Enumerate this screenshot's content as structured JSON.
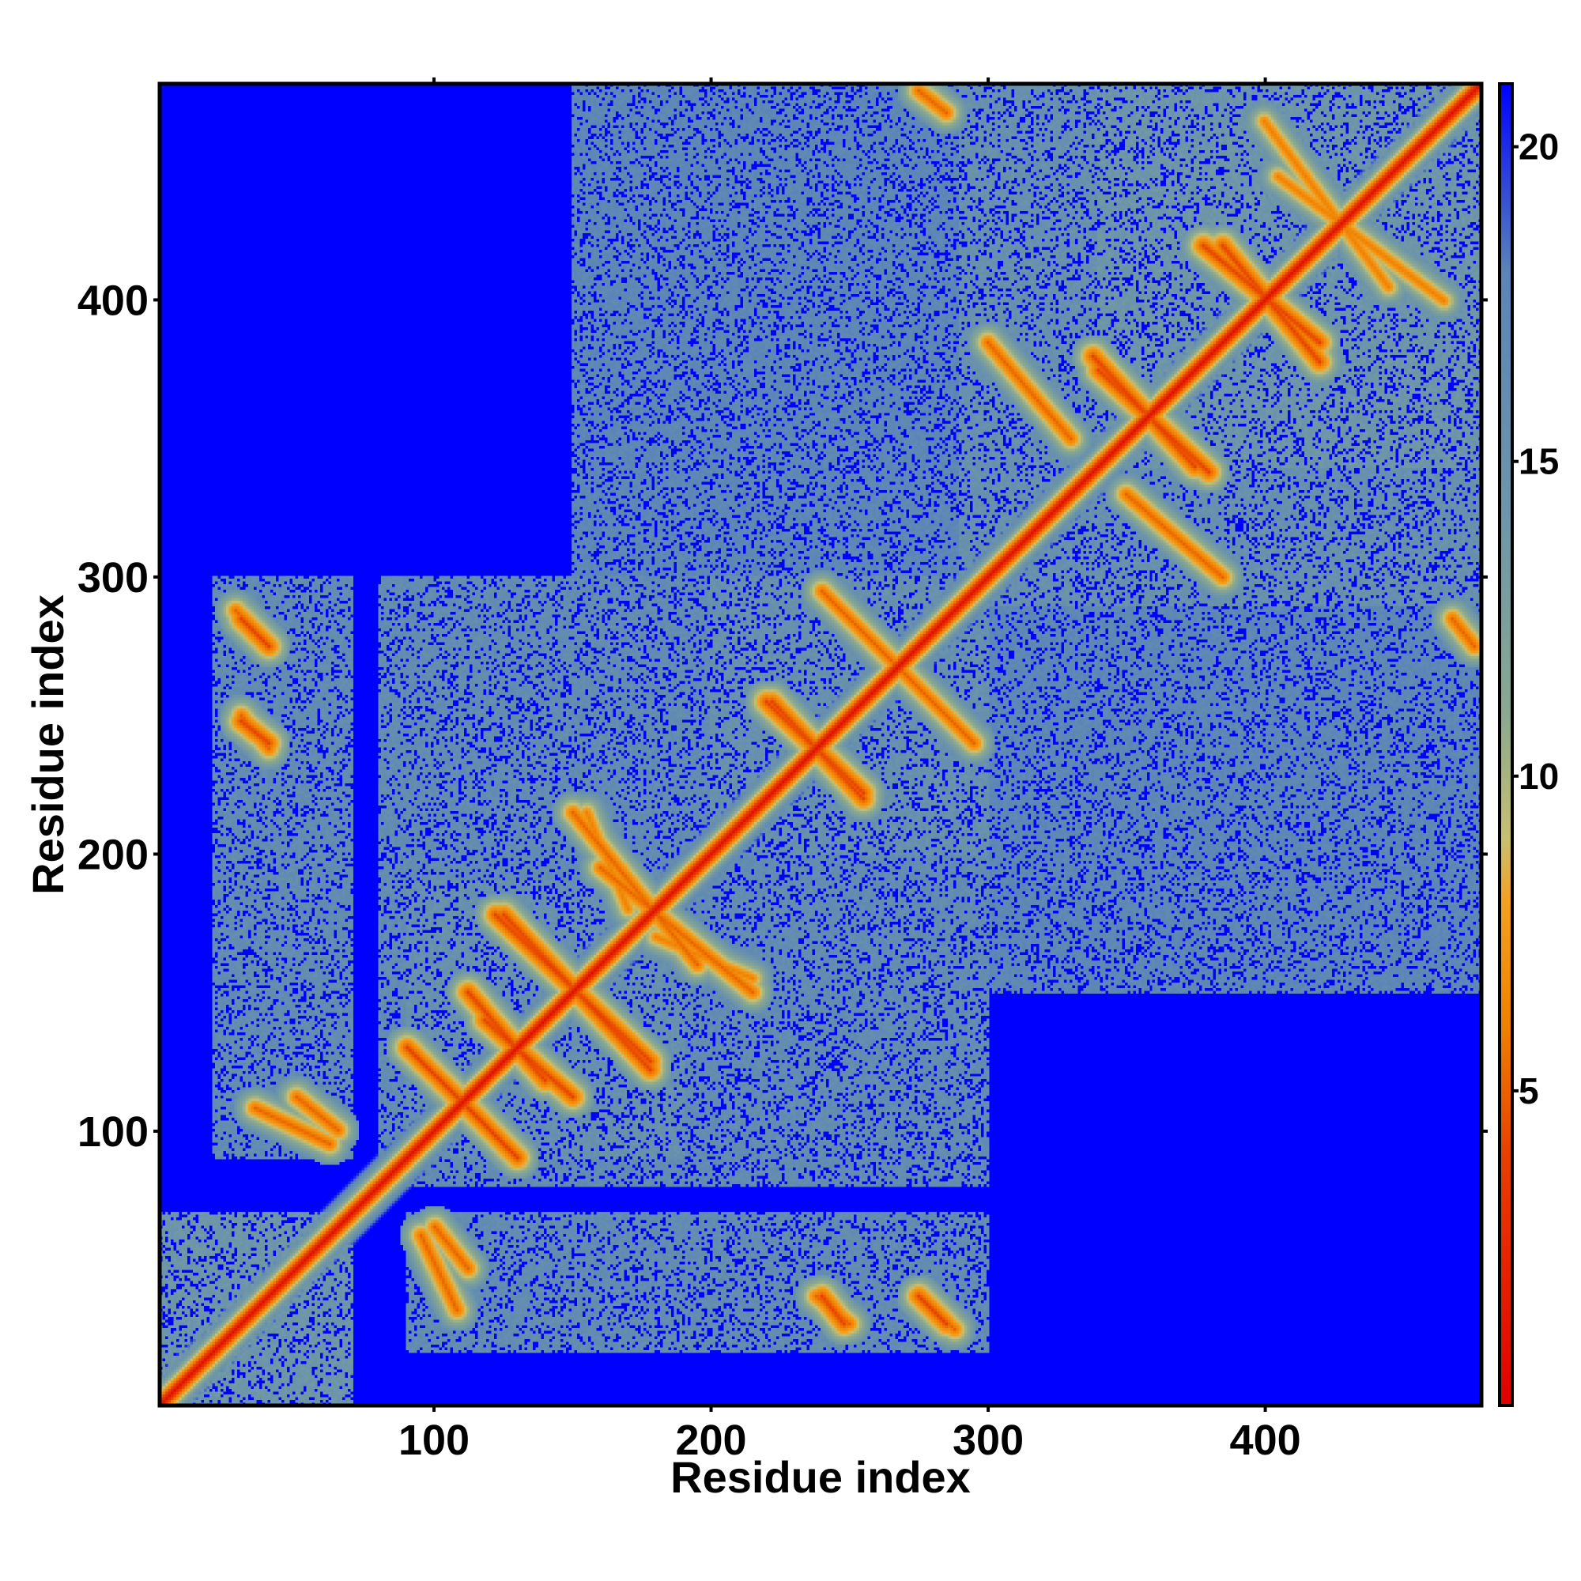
{
  "chart_data": {
    "type": "heatmap",
    "title": "",
    "xlabel": "Residue index",
    "ylabel": "Residue index",
    "xlim": [
      1,
      478
    ],
    "ylim": [
      1,
      478
    ],
    "xticks": [
      100,
      200,
      300,
      400
    ],
    "yticks": [
      100,
      200,
      300,
      400
    ],
    "x_tick_labels": [
      "100",
      "200",
      "300",
      "400"
    ],
    "y_tick_labels": [
      "100",
      "200",
      "300",
      "400"
    ],
    "grid": false,
    "colorbar": {
      "position": "right",
      "range": [
        0,
        21
      ],
      "ticks": [
        5,
        10,
        15,
        20
      ],
      "tick_labels": [
        "5",
        "10",
        "15",
        "20"
      ],
      "color_stops": [
        {
          "value": 0,
          "color": "#e00000"
        },
        {
          "value": 4,
          "color": "#e84000"
        },
        {
          "value": 6,
          "color": "#f08000"
        },
        {
          "value": 8,
          "color": "#f4a020"
        },
        {
          "value": 9,
          "color": "#c8c070"
        },
        {
          "value": 11,
          "color": "#8aa890"
        },
        {
          "value": 14,
          "color": "#6e96a8"
        },
        {
          "value": 18,
          "color": "#5b84b8"
        },
        {
          "value": 21,
          "color": "#0000ff"
        }
      ]
    },
    "symmetric": true,
    "diagonal_value": 1,
    "background_value": 21,
    "contact_blobs": [
      {
        "x_range": [
          1,
          70
        ],
        "y_range": [
          1,
          70
        ],
        "level": 14
      },
      {
        "x_range": [
          90,
          190
        ],
        "y_range": [
          90,
          190
        ],
        "level": 15
      },
      {
        "x_range": [
          80,
          300
        ],
        "y_range": [
          80,
          300
        ],
        "level": 16
      },
      {
        "x_range": [
          200,
          300
        ],
        "y_range": [
          200,
          300
        ],
        "level": 15
      },
      {
        "x_range": [
          290,
          478
        ],
        "y_range": [
          290,
          478
        ],
        "level": 15
      },
      {
        "x_range": [
          340,
          478
        ],
        "y_range": [
          340,
          478
        ],
        "level": 14
      },
      {
        "x_range": [
          20,
          70
        ],
        "y_range": [
          90,
          300
        ],
        "level": 16
      },
      {
        "x_range": [
          90,
          300
        ],
        "y_range": [
          20,
          70
        ],
        "level": 16
      },
      {
        "x_range": [
          150,
          430
        ],
        "y_range": [
          250,
          478
        ],
        "level": 17
      },
      {
        "x_range": [
          250,
          478
        ],
        "y_range": [
          150,
          430
        ],
        "level": 17
      }
    ],
    "contact_lines": [
      {
        "from": [
          92,
          128
        ],
        "to": [
          130,
          90
        ],
        "min": 4
      },
      {
        "from": [
          112,
          150
        ],
        "to": [
          140,
          118
        ],
        "min": 4
      },
      {
        "from": [
          122,
          178
        ],
        "to": [
          178,
          125
        ],
        "min": 4
      },
      {
        "from": [
          150,
          215
        ],
        "to": [
          195,
          160
        ],
        "min": 5
      },
      {
        "from": [
          180,
          170
        ],
        "to": [
          215,
          155
        ],
        "min": 6
      },
      {
        "from": [
          220,
          255
        ],
        "to": [
          255,
          222
        ],
        "min": 4
      },
      {
        "from": [
          240,
          295
        ],
        "to": [
          290,
          245
        ],
        "min": 5
      },
      {
        "from": [
          340,
          375
        ],
        "to": [
          380,
          338
        ],
        "min": 4
      },
      {
        "from": [
          385,
          420
        ],
        "to": [
          420,
          378
        ],
        "min": 4
      },
      {
        "from": [
          300,
          385
        ],
        "to": [
          330,
          350
        ],
        "min": 5
      },
      {
        "from": [
          400,
          465
        ],
        "to": [
          445,
          405
        ],
        "min": 6
      },
      {
        "from": [
          30,
          285
        ],
        "to": [
          40,
          275
        ],
        "min": 4
      },
      {
        "from": [
          30,
          248
        ],
        "to": [
          40,
          240
        ],
        "min": 4
      },
      {
        "from": [
          100,
          65
        ],
        "to": [
          112,
          50
        ],
        "min": 5
      },
      {
        "from": [
          238,
          40
        ],
        "to": [
          250,
          30
        ],
        "min": 5
      },
      {
        "from": [
          275,
          40
        ],
        "to": [
          288,
          28
        ],
        "min": 5
      },
      {
        "from": [
          35,
          108
        ],
        "to": [
          62,
          95
        ],
        "min": 5
      },
      {
        "from": [
          275,
          476
        ],
        "to": [
          285,
          468
        ],
        "min": 5
      }
    ]
  }
}
